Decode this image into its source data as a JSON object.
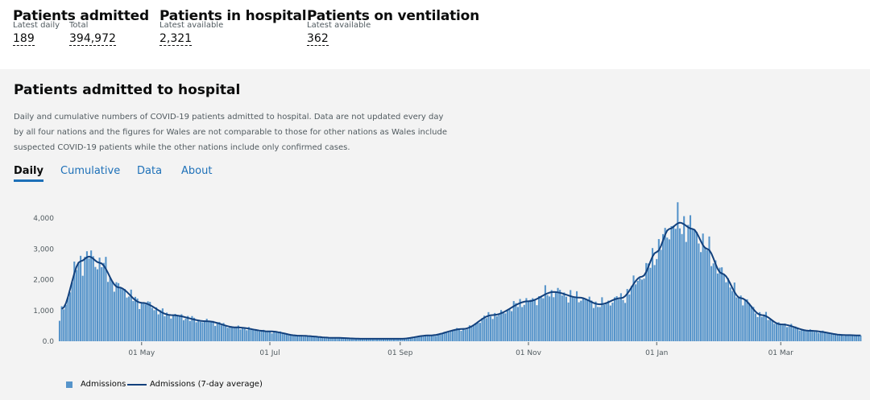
{
  "headlines": [
    {
      "title": "Patients admitted",
      "metrics": [
        {
          "label": "Latest daily",
          "value": "189"
        },
        {
          "label": "Total",
          "value": "394,972"
        }
      ]
    },
    {
      "title": "Patients in hospital",
      "metrics": [
        {
          "label": "Latest available",
          "value": "2,321"
        }
      ]
    },
    {
      "title": "Patients on ventilation",
      "metrics": [
        {
          "label": "Latest available",
          "value": "362"
        }
      ]
    }
  ],
  "card": {
    "title": "Patients admitted to hospital",
    "description": "Daily and cumulative numbers of COVID-19 patients admitted to hospital. Data are not updated every day by all four nations and the figures for Wales are not comparable to those for other nations as Wales include suspected COVID-19 patients while the other nations include only confirmed cases.",
    "tabs": [
      "Daily",
      "Cumulative",
      "Data",
      "About"
    ],
    "active_tab": "Daily"
  },
  "chart_data": {
    "type": "bar",
    "title": "",
    "xlabel": "",
    "ylabel": "",
    "ylim": [
      0,
      4000
    ],
    "yticks": [
      "0.0",
      "1,000",
      "2,000",
      "3,000",
      "4,000"
    ],
    "xticks": [
      "01 May",
      "01 Jul",
      "01 Sep",
      "01 Nov",
      "01 Jan",
      "01 Mar"
    ],
    "series_names": [
      "Admissions",
      "Admissions (7-day average)"
    ],
    "bar_color": "#5694ca",
    "line_color": "#12407c",
    "avg_keypoints": [
      {
        "date": "2020-03-24",
        "value": 1050
      },
      {
        "date": "2020-04-02",
        "value": 2600
      },
      {
        "date": "2020-04-06",
        "value": 2750
      },
      {
        "date": "2020-04-11",
        "value": 2550
      },
      {
        "date": "2020-04-20",
        "value": 1750
      },
      {
        "date": "2020-05-01",
        "value": 1250
      },
      {
        "date": "2020-05-15",
        "value": 850
      },
      {
        "date": "2020-06-01",
        "value": 650
      },
      {
        "date": "2020-06-15",
        "value": 450
      },
      {
        "date": "2020-07-01",
        "value": 320
      },
      {
        "date": "2020-07-15",
        "value": 180
      },
      {
        "date": "2020-08-01",
        "value": 110
      },
      {
        "date": "2020-08-15",
        "value": 80
      },
      {
        "date": "2020-09-01",
        "value": 80
      },
      {
        "date": "2020-09-15",
        "value": 190
      },
      {
        "date": "2020-10-01",
        "value": 400
      },
      {
        "date": "2020-10-15",
        "value": 850
      },
      {
        "date": "2020-11-01",
        "value": 1300
      },
      {
        "date": "2020-11-13",
        "value": 1600
      },
      {
        "date": "2020-11-25",
        "value": 1420
      },
      {
        "date": "2020-12-05",
        "value": 1200
      },
      {
        "date": "2020-12-15",
        "value": 1400
      },
      {
        "date": "2020-12-25",
        "value": 2100
      },
      {
        "date": "2021-01-01",
        "value": 2900
      },
      {
        "date": "2021-01-07",
        "value": 3650
      },
      {
        "date": "2021-01-12",
        "value": 3850
      },
      {
        "date": "2021-01-18",
        "value": 3650
      },
      {
        "date": "2021-01-25",
        "value": 3000
      },
      {
        "date": "2021-02-01",
        "value": 2200
      },
      {
        "date": "2021-02-10",
        "value": 1400
      },
      {
        "date": "2021-02-20",
        "value": 850
      },
      {
        "date": "2021-03-01",
        "value": 550
      },
      {
        "date": "2021-03-15",
        "value": 340
      },
      {
        "date": "2021-04-01",
        "value": 200
      },
      {
        "date": "2021-04-08",
        "value": 189
      }
    ]
  }
}
